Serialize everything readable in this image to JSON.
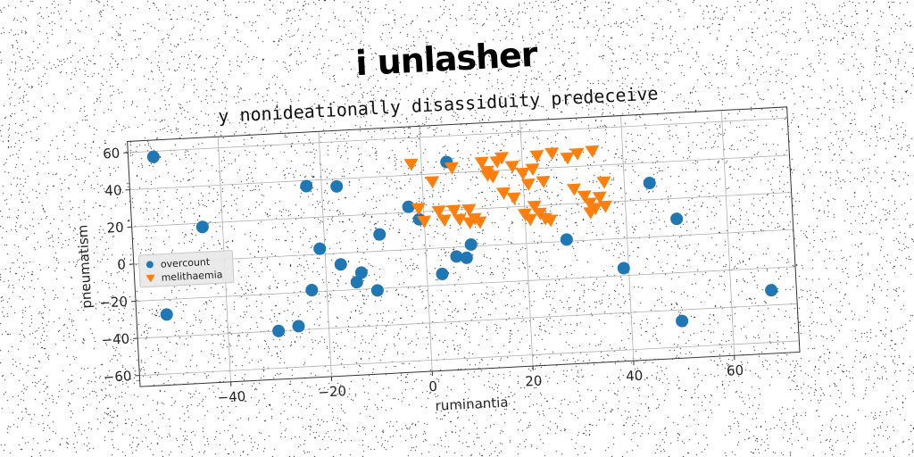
{
  "figure": {
    "suptitle": "i unlasher"
  },
  "chart_data": {
    "type": "scatter",
    "title": "y nonideationally disassiduity predeceive",
    "xlabel": "ruminantia",
    "ylabel": "pneumatism",
    "xlim": [
      -58,
      73
    ],
    "ylim": [
      -66,
      66
    ],
    "xticks": [
      -40,
      -20,
      0,
      20,
      40,
      60
    ],
    "yticks": [
      -60,
      -40,
      -20,
      0,
      20,
      40,
      60
    ],
    "xtick_labels": [
      "−40",
      "−20",
      "0",
      "20",
      "40",
      "60"
    ],
    "ytick_labels": [
      "−60",
      "−40",
      "−20",
      "0",
      "20",
      "40",
      "60"
    ],
    "grid": true,
    "legend_position": "center-left",
    "series": [
      {
        "name": "overcount",
        "marker": "circle",
        "color": "#1f77b4",
        "points": [
          [
            -53,
            57
          ],
          [
            -44,
            18
          ],
          [
            -52,
            -28
          ],
          [
            -23,
            37
          ],
          [
            -17,
            36
          ],
          [
            -21,
            3
          ],
          [
            -17,
            -6
          ],
          [
            -23,
            -19
          ],
          [
            -14,
            -16
          ],
          [
            -13,
            -11
          ],
          [
            -10,
            -21
          ],
          [
            -9,
            9
          ],
          [
            -30,
            -40
          ],
          [
            -26,
            -38
          ],
          [
            -3,
            23
          ],
          [
            -1,
            16
          ],
          [
            3,
            -14
          ],
          [
            6,
            -5
          ],
          [
            8,
            -6
          ],
          [
            9,
            1
          ],
          [
            5,
            46
          ],
          [
            28,
            1
          ],
          [
            39,
            -16
          ],
          [
            45,
            29
          ],
          [
            50,
            9
          ],
          [
            50,
            -46
          ],
          [
            68,
            -32
          ]
        ]
      },
      {
        "name": "melithaemia",
        "marker": "triangle_down",
        "color": "#ff7f0e",
        "points": [
          [
            -2,
            46
          ],
          [
            2,
            36
          ],
          [
            6,
            43
          ],
          [
            -1,
            22
          ],
          [
            0,
            15
          ],
          [
            3,
            20
          ],
          [
            4,
            15
          ],
          [
            6,
            20
          ],
          [
            7,
            15
          ],
          [
            9,
            20
          ],
          [
            9,
            13
          ],
          [
            11,
            13
          ],
          [
            12,
            45
          ],
          [
            13,
            40
          ],
          [
            14,
            37
          ],
          [
            15,
            45
          ],
          [
            16,
            47
          ],
          [
            18,
            42
          ],
          [
            18,
            25
          ],
          [
            20,
            38
          ],
          [
            21,
            32
          ],
          [
            22,
            40
          ],
          [
            24,
            33
          ],
          [
            23,
            47
          ],
          [
            26,
            48
          ],
          [
            29,
            45
          ],
          [
            31,
            47
          ],
          [
            34,
            48
          ],
          [
            20,
            16
          ],
          [
            21,
            13
          ],
          [
            23,
            16
          ],
          [
            24,
            13
          ],
          [
            25,
            12
          ],
          [
            30,
            28
          ],
          [
            32,
            24
          ],
          [
            33,
            20
          ],
          [
            34,
            17
          ],
          [
            35,
            23
          ],
          [
            36,
            18
          ],
          [
            33,
            15
          ],
          [
            36,
            31
          ],
          [
            22,
            20
          ],
          [
            16,
            28
          ],
          [
            10,
            15
          ],
          [
            13,
            38
          ]
        ]
      }
    ]
  }
}
